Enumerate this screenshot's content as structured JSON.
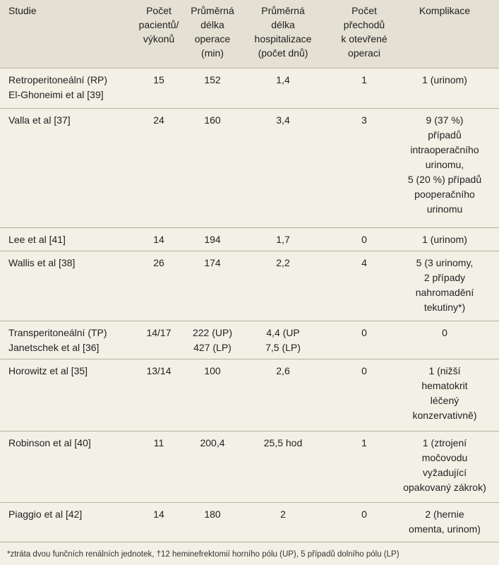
{
  "header": {
    "c0": "Studie",
    "c1": "Počet\npacientů/\nvýkonů",
    "c2": "Průměrná\ndélka\noperace\n(min)",
    "c3": "Průměrná\ndélka\nhospitalizace\n(počet dnů)",
    "c4": "Počet\npřechodů\nk otevřené\noperaci",
    "c5": "Komplikace"
  },
  "rows": [
    {
      "c0": "Retroperitoneální (RP)\nEl-Ghoneimi et al [39]",
      "c1": "15",
      "c2": "152",
      "c3": "1,4",
      "c4": "1",
      "c5": "1 (urinom)"
    },
    {
      "c0": "Valla et al [37]",
      "c1": "24",
      "c2": "160",
      "c3": "3,4",
      "c4": "3",
      "c5": "9 (37 %)\npřípadů\nintraoperačního\nurinomu,\n5 (20 %) případů\npooperačního\nurinomu"
    },
    {
      "c0": "Lee et al [41]",
      "c1": "14",
      "c2": "194",
      "c3": "1,7",
      "c4": "0",
      "c5": "1 (urinom)"
    },
    {
      "c0": "Wallis et al [38]",
      "c1": "26",
      "c2": "174",
      "c3": "2,2",
      "c4": "4",
      "c5": "5 (3 urinomy,\n2 případy\nnahromadění\ntekutiny*)"
    },
    {
      "c0": "Transperitoneální (TP)\nJanetschek et al [36]",
      "c1": "14/17",
      "c2": "222 (UP)\n427 (LP)",
      "c3": "4,4 (UP\n7,5 (LP)",
      "c4": "0",
      "c5": "0"
    },
    {
      "c0": "Horowitz et al [35]",
      "c1": "13/14",
      "c2": "100",
      "c3": "2,6",
      "c4": "0",
      "c5": "1 (nižší\nhematokrit\nléčený\nkonzervativně)"
    },
    {
      "c0": "Robinson et al [40]",
      "c1": "11",
      "c2": "200,4",
      "c3": "25,5 hod",
      "c4": "1",
      "c5": "1 (ztrojení\nmočovodu\nvyžadující\nopakovaný zákrok)"
    },
    {
      "c0": "Piaggio et al [42]",
      "c1": "14",
      "c2": "180",
      "c3": "2",
      "c4": "0",
      "c5": "2 (hernie\nomenta, urinom)"
    }
  ],
  "footnote": "*ztráta dvou funčních renálních jednotek, †12 heminefrektomií horního pólu (UP), 5 případů dolního pólu (LP)"
}
